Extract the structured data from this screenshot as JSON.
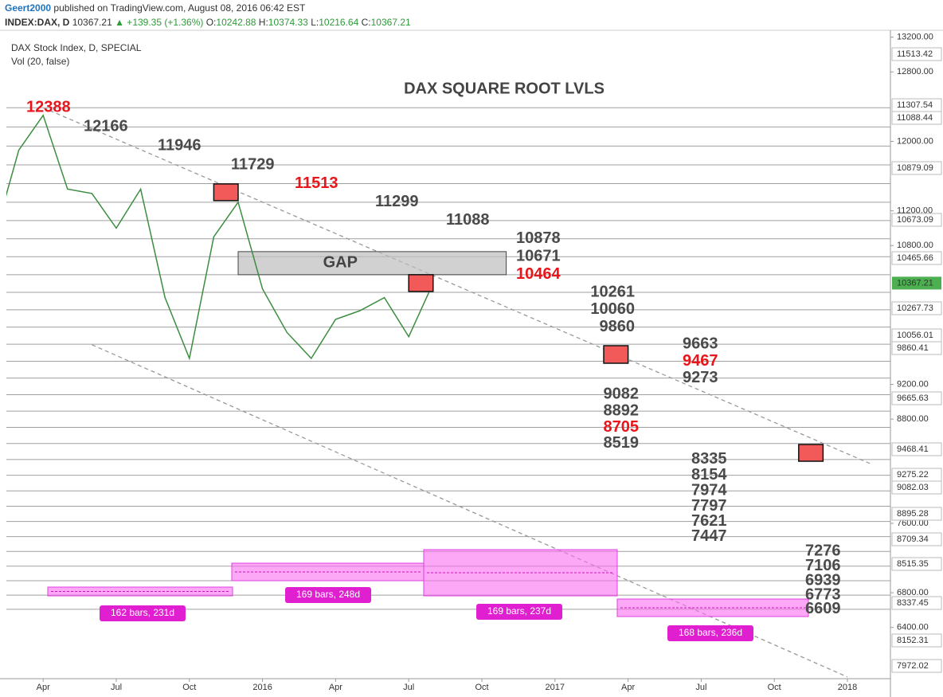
{
  "header": {
    "author": "Geert2000",
    "published": "published on TradingView.com, August 08, 2016 06:42 EST",
    "symbol": "INDEX:DAX, D",
    "last": "10367.21",
    "change": "▲ +139.35 (+1.36%)",
    "ohlc": [
      {
        "label": "O:",
        "value": "10242.88"
      },
      {
        "label": "H:",
        "value": "10374.33"
      },
      {
        "label": "L:",
        "value": "10216.64"
      },
      {
        "label": "C:",
        "value": "10367.21"
      }
    ]
  },
  "chart_data": {
    "type": "line",
    "title": "DAX SQUARE ROOT LVLS",
    "legend": [
      "DAX Stock Index, D, SPECIAL",
      "Vol (20, false)"
    ],
    "x": [
      "2015-02",
      "2015-03",
      "2015-04",
      "2015-05",
      "2015-06",
      "2015-07",
      "2015-08",
      "2015-09",
      "2015-10",
      "2015-11",
      "2015-12",
      "2016-01",
      "2016-02",
      "2016-03",
      "2016-04",
      "2016-05",
      "2016-06",
      "2016-07",
      "2016-08"
    ],
    "values": [
      10900,
      11900,
      12300,
      11450,
      11400,
      11000,
      11450,
      10200,
      9500,
      10900,
      11300,
      10300,
      9800,
      9500,
      9950,
      10050,
      10200,
      9750,
      10367
    ],
    "color": "#3c8d40",
    "xlim": [
      "2015-02",
      "2018-02"
    ],
    "xticks": [
      {
        "value": "2015-04",
        "label": "Apr"
      },
      {
        "value": "2015-07",
        "label": "Jul"
      },
      {
        "value": "2015-10",
        "label": "Oct"
      },
      {
        "value": "2016-01",
        "label": "2016"
      },
      {
        "value": "2016-04",
        "label": "Apr"
      },
      {
        "value": "2016-07",
        "label": "Jul"
      },
      {
        "value": "2016-10",
        "label": "Oct"
      },
      {
        "value": "2017-01",
        "label": "2017"
      },
      {
        "value": "2017-04",
        "label": "Apr"
      },
      {
        "value": "2017-07",
        "label": "Jul"
      },
      {
        "value": "2017-10",
        "label": "Oct"
      },
      {
        "value": "2018-01",
        "label": "2018"
      }
    ],
    "ylim": [
      5810,
      13280
    ],
    "yticks": [
      {
        "value": 13200,
        "label": "13200.00"
      },
      {
        "value": 12800,
        "label": "12800.00"
      },
      {
        "value": 12000,
        "label": "12000.00"
      },
      {
        "value": 11200,
        "label": "11200.00"
      },
      {
        "value": 10800,
        "label": "10800.00"
      },
      {
        "value": 9200,
        "label": "9200.00"
      },
      {
        "value": 8800,
        "label": "8800.00"
      },
      {
        "value": 7600,
        "label": "7600.00"
      },
      {
        "value": 6800,
        "label": "6800.00"
      },
      {
        "value": 6400,
        "label": "6400.00"
      }
    ],
    "price_labels": [
      "11513.42",
      "11307.54",
      "11088.44",
      "10879.09",
      "10673.09",
      "10465.66",
      "10267.73",
      "10056.01",
      "9860.41",
      "9665.63",
      "9468.41",
      "9275.22",
      "9082.03",
      "8895.28",
      "8709.34",
      "8515.35",
      "8337.45",
      "8152.31",
      "7972.02"
    ],
    "current_price": {
      "value": 10367.21,
      "label": "10367.21",
      "color": "#4caf50"
    },
    "levels": [
      {
        "values": [
          12388
        ],
        "colors": [
          "#e8161b"
        ]
      },
      {
        "values": [
          12166
        ],
        "colors": [
          "#4a4a4a"
        ]
      },
      {
        "values": [
          11946
        ],
        "colors": [
          "#4a4a4a"
        ]
      },
      {
        "values": [
          11729
        ],
        "colors": [
          "#4a4a4a"
        ]
      },
      {
        "values": [
          11513
        ],
        "colors": [
          "#e8161b"
        ]
      },
      {
        "values": [
          11299
        ],
        "colors": [
          "#4a4a4a"
        ]
      },
      {
        "values": [
          11088
        ],
        "colors": [
          "#4a4a4a"
        ]
      },
      {
        "values": [
          10878,
          10671,
          10464
        ],
        "colors": [
          "#4a4a4a",
          "#4a4a4a",
          "#e8161b"
        ]
      },
      {
        "values": [
          10261,
          10060,
          9860
        ],
        "colors": [
          "#4a4a4a",
          "#4a4a4a",
          "#4a4a4a"
        ]
      },
      {
        "values": [
          9663,
          9467,
          9273
        ],
        "colors": [
          "#4a4a4a",
          "#e8161b",
          "#4a4a4a"
        ]
      },
      {
        "values": [
          9082,
          8892,
          8705,
          8519
        ],
        "colors": [
          "#4a4a4a",
          "#4a4a4a",
          "#e8161b",
          "#4a4a4a"
        ]
      },
      {
        "values": [
          8335,
          8154,
          7974,
          7797,
          7621,
          7447
        ],
        "colors": [
          "#4a4a4a",
          "#4a4a4a",
          "#4a4a4a",
          "#4a4a4a",
          "#4a4a4a",
          "#4a4a4a"
        ]
      },
      {
        "values": [
          7276,
          7106,
          6939,
          6773,
          6609
        ],
        "colors": [
          "#4a4a4a",
          "#4a4a4a",
          "#4a4a4a",
          "#4a4a4a",
          "#4a4a4a"
        ]
      }
    ],
    "trendlines": [
      {
        "x": [
          "2015-04",
          "2018-02"
        ],
        "y": [
          12388,
          8280
        ]
      },
      {
        "x": [
          "2015-06",
          "2018-01"
        ],
        "y": [
          9657,
          5830
        ]
      }
    ],
    "zones": [
      {
        "x": [
          "2015-11",
          "2015-12"
        ],
        "y": [
          11318,
          11510
        ]
      },
      {
        "x": [
          "2016-07",
          "2016-08"
        ],
        "y": [
          10271,
          10464
        ]
      },
      {
        "x": [
          "2017-03",
          "2017-04"
        ],
        "y": [
          9444,
          9646
        ]
      },
      {
        "x": [
          "2017-11",
          "2017-12"
        ],
        "y": [
          8315,
          8508
        ]
      }
    ],
    "gap": {
      "label": "GAP",
      "x": [
        "2015-12",
        "2016-11"
      ],
      "y": [
        10464,
        10730
      ]
    },
    "ranges": [
      "162 bars, 231d",
      "169 bars, 248d",
      "169 bars, 237d",
      "168 bars, 236d"
    ]
  }
}
